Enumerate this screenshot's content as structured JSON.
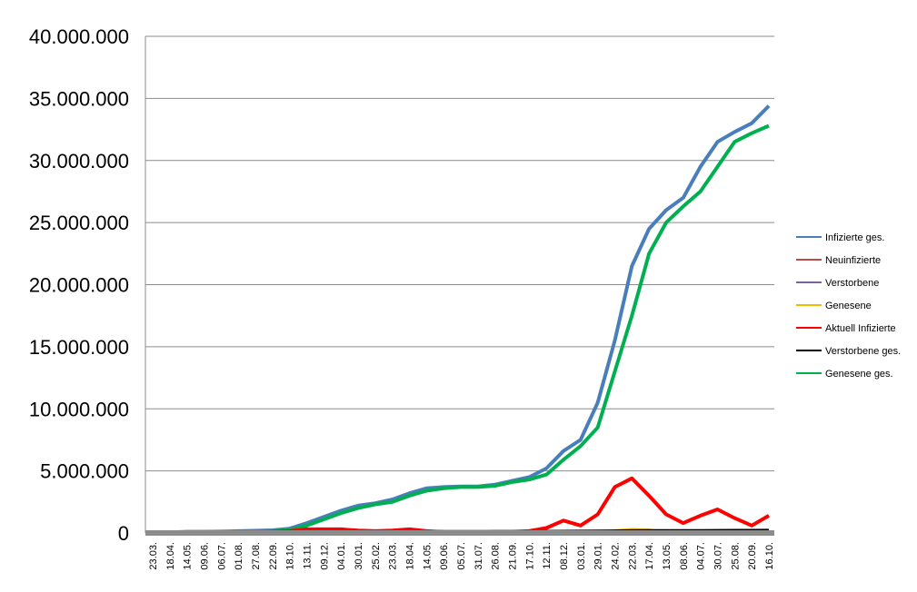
{
  "chart_data": {
    "type": "line",
    "title": "",
    "xlabel": "",
    "ylabel": "",
    "ylim": [
      0,
      40000000
    ],
    "grid": true,
    "legend_position": "right",
    "y_ticks": [
      "0",
      "5.000.000",
      "10.000.000",
      "15.000.000",
      "20.000.000",
      "25.000.000",
      "30.000.000",
      "35.000.000",
      "40.000.000"
    ],
    "categories": [
      "23.03.",
      "18.04.",
      "14.05.",
      "09.06.",
      "06.07.",
      "01.08.",
      "27.08.",
      "22.09.",
      "18.10.",
      "13.11.",
      "09.12.",
      "04.01.",
      "30.01.",
      "25.02.",
      "23.03.",
      "18.04.",
      "14.05.",
      "09.06.",
      "05.07.",
      "31.07.",
      "26.08.",
      "21.09.",
      "17.10.",
      "12.11.",
      "08.12.",
      "03.01.",
      "29.01.",
      "24.02.",
      "22.03.",
      "17.04.",
      "13.05.",
      "08.06.",
      "04.07.",
      "30.07.",
      "25.08.",
      "20.09.",
      "16.10."
    ],
    "series": [
      {
        "name": "Infizierte ges.",
        "color": "#4A7EBB",
        "values": [
          0.0005,
          0.05,
          0.1,
          0.1,
          0.12,
          0.15,
          0.18,
          0.22,
          0.35,
          0.8,
          1.3,
          1.8,
          2.2,
          2.4,
          2.7,
          3.2,
          3.6,
          3.7,
          3.75,
          3.75,
          3.9,
          4.2,
          4.5,
          5.2,
          6.6,
          7.5,
          10.5,
          15.5,
          21.5,
          24.5,
          26.0,
          27.0,
          29.5,
          31.5,
          32.3,
          33.0,
          34.4
        ]
      },
      {
        "name": "Neuinfizierte",
        "color": "#BE4B48",
        "values": [
          0,
          0.001,
          0.001,
          0.001,
          0.001,
          0.001,
          0.002,
          0.005,
          0.01,
          0.02,
          0.03,
          0.02,
          0.01,
          0.01,
          0.02,
          0.02,
          0.01,
          0.005,
          0.005,
          0.005,
          0.01,
          0.02,
          0.03,
          0.05,
          0.06,
          0.05,
          0.1,
          0.2,
          0.25,
          0.15,
          0.08,
          0.05,
          0.08,
          0.1,
          0.06,
          0.05,
          0.1
        ]
      },
      {
        "name": "Verstorbene",
        "color": "#7D60A0",
        "values": [
          0,
          0,
          0,
          0,
          0,
          0,
          0,
          0,
          0,
          0.001,
          0.001,
          0.001,
          0.001,
          0.001,
          0.001,
          0.001,
          0.001,
          0,
          0,
          0,
          0,
          0,
          0,
          0.001,
          0.001,
          0.001,
          0.002,
          0.003,
          0.003,
          0.002,
          0.001,
          0.001,
          0.001,
          0.001,
          0.001,
          0.001,
          0.001
        ]
      },
      {
        "name": "Genesene",
        "color": "#F5B800",
        "values": [
          0,
          0.001,
          0.001,
          0.001,
          0.001,
          0.001,
          0.002,
          0.004,
          0.008,
          0.02,
          0.03,
          0.03,
          0.02,
          0.01,
          0.02,
          0.02,
          0.02,
          0.01,
          0.005,
          0.005,
          0.01,
          0.02,
          0.03,
          0.04,
          0.05,
          0.05,
          0.1,
          0.25,
          0.35,
          0.3,
          0.1,
          0.05,
          0.06,
          0.1,
          0.08,
          0.05,
          0.06
        ]
      },
      {
        "name": "Aktuell Infizierte",
        "color": "#FF0000",
        "values": [
          0.0005,
          0.05,
          0.05,
          0.03,
          0.03,
          0.05,
          0.06,
          0.1,
          0.15,
          0.3,
          0.3,
          0.3,
          0.2,
          0.15,
          0.2,
          0.3,
          0.15,
          0.08,
          0.05,
          0.05,
          0.1,
          0.1,
          0.15,
          0.4,
          1.0,
          0.6,
          1.5,
          3.7,
          4.4,
          3.0,
          1.5,
          0.8,
          1.4,
          1.9,
          1.2,
          0.6,
          1.4
        ]
      },
      {
        "name": "Verstorbene ges.",
        "color": "#000000",
        "values": [
          0,
          0.002,
          0.005,
          0.006,
          0.006,
          0.007,
          0.008,
          0.01,
          0.012,
          0.02,
          0.03,
          0.05,
          0.065,
          0.07,
          0.075,
          0.08,
          0.085,
          0.09,
          0.09,
          0.09,
          0.092,
          0.094,
          0.095,
          0.1,
          0.11,
          0.12,
          0.13,
          0.14,
          0.15,
          0.16,
          0.17,
          0.17,
          0.17,
          0.175,
          0.18,
          0.185,
          0.19
        ]
      },
      {
        "name": "Genesene ges.",
        "color": "#00B050",
        "values": [
          0,
          0.04,
          0.08,
          0.09,
          0.1,
          0.12,
          0.14,
          0.15,
          0.25,
          0.6,
          1.1,
          1.6,
          2.0,
          2.3,
          2.5,
          3.0,
          3.4,
          3.6,
          3.7,
          3.7,
          3.8,
          4.1,
          4.3,
          4.7,
          5.9,
          7.0,
          8.5,
          13.0,
          17.5,
          22.5,
          25.0,
          26.3,
          27.5,
          29.5,
          31.5,
          32.2,
          32.8
        ]
      }
    ],
    "value_unit_multiplier": 1000000
  }
}
